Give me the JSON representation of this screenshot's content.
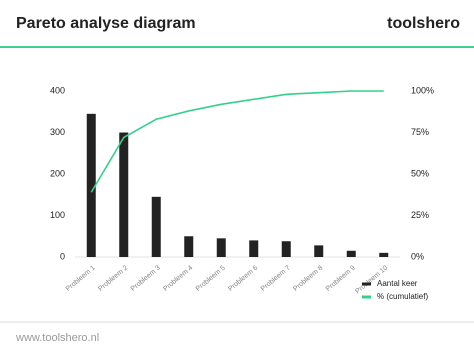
{
  "header": {
    "title": "Pareto analyse diagram",
    "brand": "toolshero"
  },
  "footer": {
    "url": "www.toolshero.nl"
  },
  "chart_data": {
    "type": "bar",
    "categories": [
      "Probleem 1",
      "Probleem 2",
      "Probleem 3",
      "Probleem 4",
      "Probleem 5",
      "Probleem 6",
      "Probleem 7",
      "Probleem 8",
      "Probleem 9",
      "Probleem 10"
    ],
    "series": [
      {
        "name": "Aantal keer",
        "color": "#222222",
        "values": [
          345,
          300,
          145,
          50,
          45,
          40,
          38,
          28,
          15,
          10
        ]
      },
      {
        "name": "% (cumulatief)",
        "color": "#33d18a",
        "type": "line",
        "axis": "y2",
        "values": [
          39,
          72,
          83,
          88,
          92,
          95,
          98,
          99,
          100,
          100
        ]
      }
    ],
    "ylim": [
      0,
      400
    ],
    "yticks": [
      0,
      100,
      200,
      300,
      400
    ],
    "y2lim": [
      0,
      100
    ],
    "y2ticks": [
      {
        "value": 0,
        "label": "0%"
      },
      {
        "value": 25,
        "label": "25%"
      },
      {
        "value": 50,
        "label": "50%"
      },
      {
        "value": 75,
        "label": "75%"
      },
      {
        "value": 100,
        "label": "100%"
      }
    ]
  }
}
